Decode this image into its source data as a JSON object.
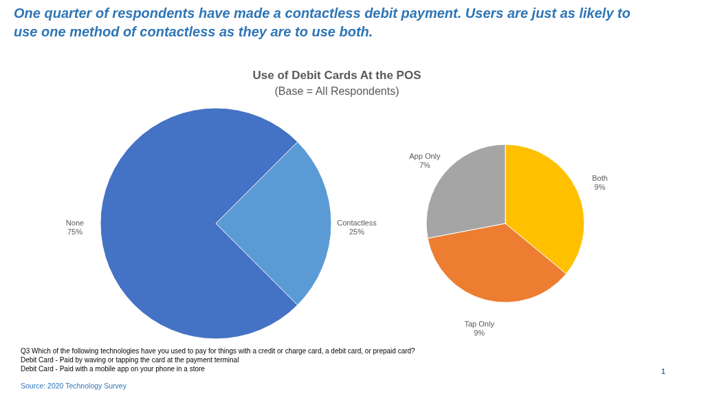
{
  "chart_data": [
    {
      "type": "pie",
      "title": "Use of Debit Cards At the POS",
      "subtitle": "(Base = All Respondents)",
      "categories": [
        "Contactless",
        "None"
      ],
      "values": [
        25,
        75
      ],
      "colors": [
        "#5b9bd5",
        "#4472c4"
      ],
      "value_labels": [
        "25%",
        "75%"
      ],
      "annotations": [
        "One quarter of respondents have made a contactless debit payment.  Users are just as likely to use one method of contactless as they are to use both.",
        "Q3 Which of the following technologies have you used to pay for things with a credit or charge card, a debit card, or prepaid card?",
        "Debit Card - Paid by waving or tapping the card at the payment terminal",
        "Debit Card - Paid with a mobile app on your phone in a store",
        "Source: 2020 Technology Survey",
        "1"
      ]
    },
    {
      "type": "pie",
      "categories": [
        "Both",
        "Tap Only",
        "App Only"
      ],
      "values": [
        9,
        9,
        7
      ],
      "colors": [
        "#ffc000",
        "#ed7d31",
        "#a5a5a5"
      ],
      "value_labels": [
        "9%",
        "9%",
        "7%"
      ]
    }
  ]
}
